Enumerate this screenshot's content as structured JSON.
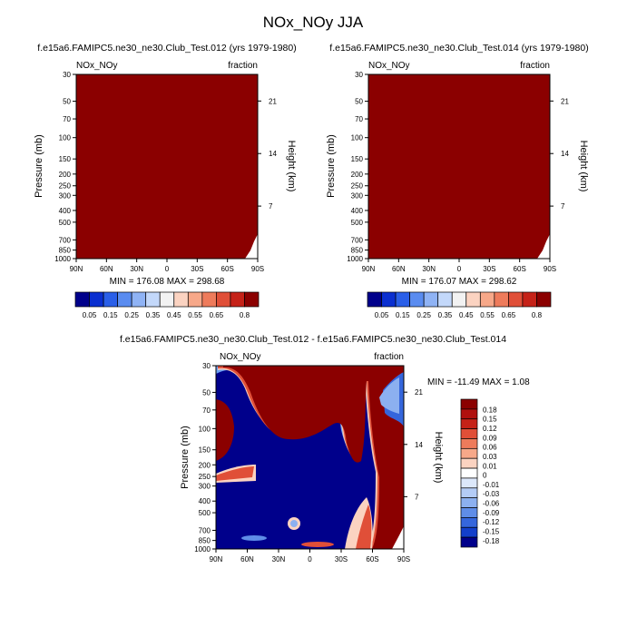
{
  "title": "NOx_NOy JJA",
  "chart_data": [
    {
      "type": "heatmap",
      "title": "f.e15a6.FAMIPC5.ne30_ne30.Club_Test.012 (yrs 1979-1980)",
      "left_label": "NOx_NOy",
      "right_label": "fraction",
      "xlabel": "",
      "ylabel": "Pressure (mb)",
      "ylabel_right": "Height (km)",
      "x_ticks": [
        "90N",
        "60N",
        "30N",
        "0",
        "30S",
        "60S",
        "90S"
      ],
      "y_ticks": [
        "30",
        "50",
        "70",
        "100",
        "150",
        "200",
        "250",
        "300",
        "400",
        "500",
        "700",
        "850",
        "1000"
      ],
      "y_ticks_right": [
        "21",
        "14",
        "7"
      ],
      "stats": "MIN = 176.08  MAX = 298.68",
      "colorbar_labels": [
        "0.05",
        "0.15",
        "0.25",
        "0.35",
        "0.45",
        "0.55",
        "0.65",
        "0.8"
      ],
      "dominant_value": 0.8
    },
    {
      "type": "heatmap",
      "title": "f.e15a6.FAMIPC5.ne30_ne30.Club_Test.014 (yrs 1979-1980)",
      "left_label": "NOx_NOy",
      "right_label": "fraction",
      "xlabel": "",
      "ylabel": "Pressure (mb)",
      "ylabel_right": "Height (km)",
      "x_ticks": [
        "90N",
        "60N",
        "30N",
        "0",
        "30S",
        "60S",
        "90S"
      ],
      "y_ticks": [
        "30",
        "50",
        "70",
        "100",
        "150",
        "200",
        "250",
        "300",
        "400",
        "500",
        "700",
        "850",
        "1000"
      ],
      "y_ticks_right": [
        "21",
        "14",
        "7"
      ],
      "stats": "MIN = 176.07  MAX = 298.62",
      "colorbar_labels": [
        "0.05",
        "0.15",
        "0.25",
        "0.35",
        "0.45",
        "0.55",
        "0.65",
        "0.8"
      ],
      "dominant_value": 0.8
    },
    {
      "type": "heatmap",
      "title": "f.e15a6.FAMIPC5.ne30_ne30.Club_Test.012 - f.e15a6.FAMIPC5.ne30_ne30.Club_Test.014",
      "left_label": "NOx_NOy",
      "right_label": "fraction",
      "xlabel": "",
      "ylabel": "Pressure (mb)",
      "ylabel_right": "Height (km)",
      "x_ticks": [
        "90N",
        "60N",
        "30N",
        "0",
        "30S",
        "60S",
        "90S"
      ],
      "y_ticks": [
        "30",
        "50",
        "70",
        "100",
        "150",
        "200",
        "250",
        "300",
        "400",
        "500",
        "700",
        "850",
        "1000"
      ],
      "y_ticks_right": [
        "21",
        "14",
        "7"
      ],
      "stats": "MIN = -11.49  MAX =   1.08",
      "colorbar_labels": [
        "0.18",
        "0.15",
        "0.12",
        "0.09",
        "0.06",
        "0.03",
        "0.01",
        "0",
        "-0.01",
        "-0.03",
        "-0.06",
        "-0.09",
        "-0.12",
        "-0.15",
        "-0.18"
      ]
    }
  ],
  "colors": {
    "dark_red": "#8b0000",
    "dark_blue": "#00008b",
    "plot_bg": "#ffffff"
  },
  "colormap_top": [
    "#00008b",
    "#0a2fd0",
    "#2a5fe8",
    "#5a8cf0",
    "#8fb3f5",
    "#c3d8fa",
    "#f2f2f2",
    "#fbd3c1",
    "#f7a889",
    "#ee7b5b",
    "#e04f38",
    "#c52218",
    "#8b0000"
  ],
  "colormap_diff": [
    "#8b0000",
    "#b0100e",
    "#c52218",
    "#e04f38",
    "#ee7b5b",
    "#f7a889",
    "#fbd3c1",
    "#ffffff",
    "#dce8fb",
    "#b4ccf6",
    "#8cb0f0",
    "#5f8de8",
    "#3566dc",
    "#133fcb",
    "#00008b"
  ]
}
